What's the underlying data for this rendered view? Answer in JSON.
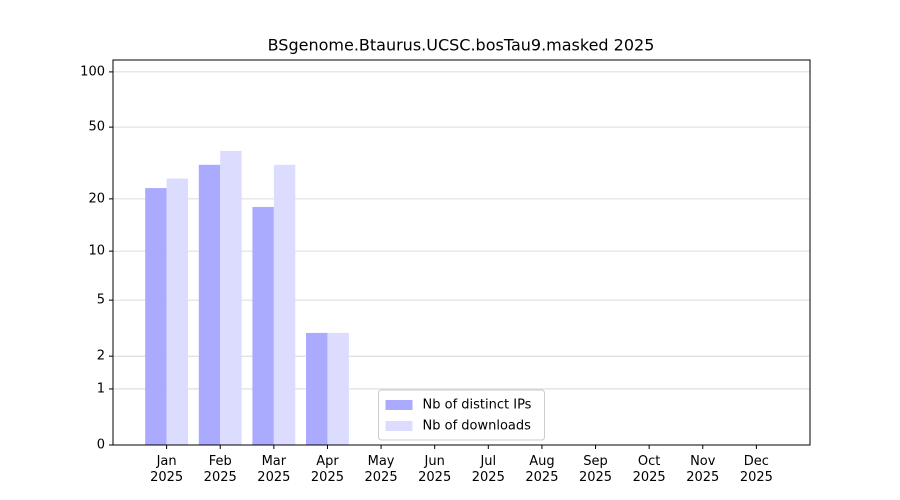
{
  "chart_data": {
    "type": "bar",
    "title": "BSgenome.Btaurus.UCSC.bosTau9.masked 2025",
    "scale": "log1p",
    "categories": [
      "Jan\n2025",
      "Feb\n2025",
      "Mar\n2025",
      "Apr\n2025",
      "May\n2025",
      "Jun\n2025",
      "Jul\n2025",
      "Aug\n2025",
      "Sep\n2025",
      "Oct\n2025",
      "Nov\n2025",
      "Dec\n2025"
    ],
    "series": [
      {
        "name": "Nb of distinct IPs",
        "color": "#aaaaff",
        "values": [
          23,
          31,
          18,
          3,
          null,
          null,
          null,
          null,
          null,
          null,
          null,
          null
        ]
      },
      {
        "name": "Nb of downloads",
        "color": "#dcdcff",
        "values": [
          26,
          37,
          31,
          3,
          null,
          null,
          null,
          null,
          null,
          null,
          null,
          null
        ]
      }
    ],
    "ylim": [
      0,
      116
    ],
    "yticks": [
      0,
      1,
      2,
      5,
      10,
      20,
      50,
      100
    ],
    "grid": true,
    "legend": "lower center"
  }
}
